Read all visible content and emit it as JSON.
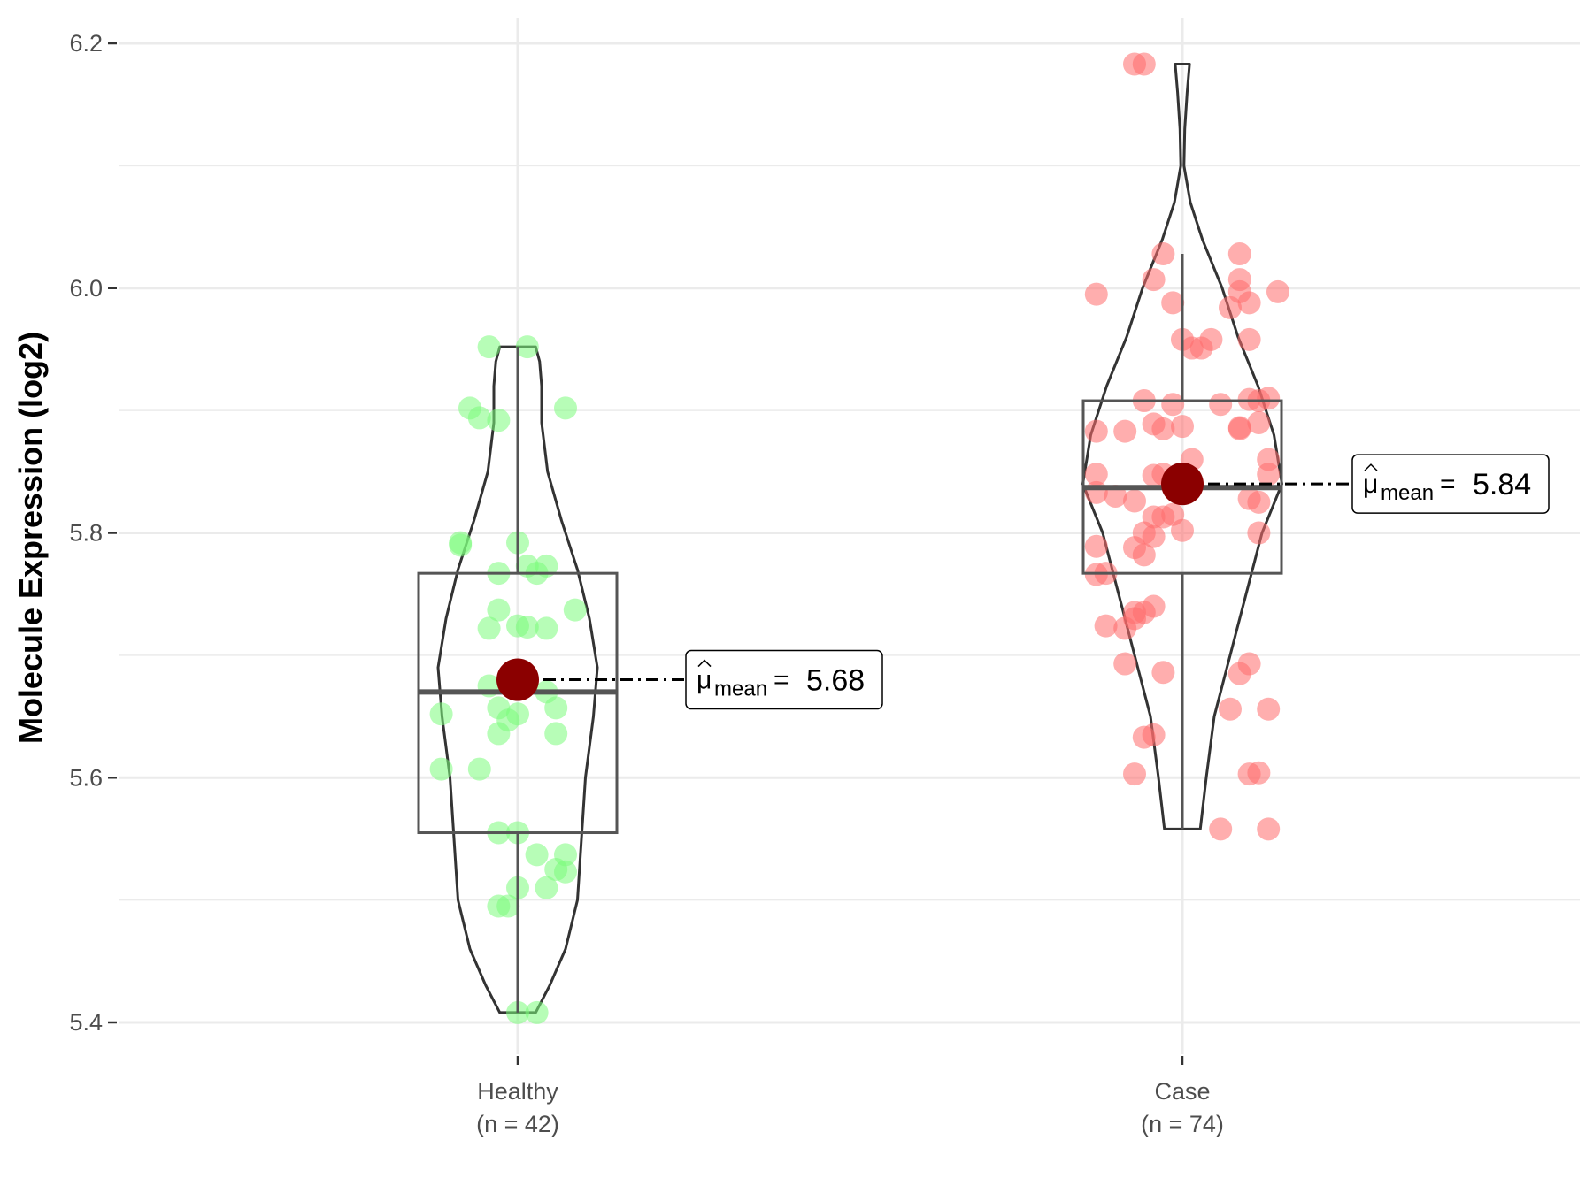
{
  "chart_data": {
    "type": "violin",
    "title": "",
    "xlabel": "",
    "ylabel": "Molecule Expression (log2)",
    "ylim": [
      5.38,
      6.22
    ],
    "y_ticks": [
      "5.4",
      "5.6",
      "5.8",
      "6.0",
      "6.2"
    ],
    "grid": true,
    "categories": [
      {
        "name": "Healthy",
        "n_label": "(n = 42)",
        "color": "#7CFC7C",
        "box": {
          "q1": 5.555,
          "median": 5.67,
          "q3": 5.767,
          "whisker_low": 5.408,
          "whisker_high": 5.952
        },
        "mean": 5.68,
        "mean_label": "5.68",
        "points": [
          [
            -0.03,
            5.952
          ],
          [
            0.01,
            5.952
          ],
          [
            -0.05,
            5.902
          ],
          [
            -0.04,
            5.894
          ],
          [
            -0.02,
            5.892
          ],
          [
            0.05,
            5.902
          ],
          [
            -0.06,
            5.792
          ],
          [
            0.0,
            5.792
          ],
          [
            -0.02,
            5.767
          ],
          [
            0.01,
            5.773
          ],
          [
            0.02,
            5.767
          ],
          [
            0.03,
            5.773
          ],
          [
            -0.02,
            5.737
          ],
          [
            -0.03,
            5.722
          ],
          [
            0.01,
            5.723
          ],
          [
            0.0,
            5.724
          ],
          [
            0.03,
            5.722
          ],
          [
            0.06,
            5.737
          ],
          [
            -0.03,
            5.675
          ],
          [
            -0.02,
            5.657
          ],
          [
            -0.01,
            5.647
          ],
          [
            0.0,
            5.652
          ],
          [
            -0.08,
            5.652
          ],
          [
            0.03,
            5.67
          ],
          [
            0.04,
            5.657
          ],
          [
            -0.02,
            5.636
          ],
          [
            0.04,
            5.636
          ],
          [
            -0.08,
            5.607
          ],
          [
            -0.04,
            5.607
          ],
          [
            -0.02,
            5.555
          ],
          [
            0.0,
            5.555
          ],
          [
            0.02,
            5.537
          ],
          [
            0.05,
            5.537
          ],
          [
            0.04,
            5.525
          ],
          [
            0.05,
            5.523
          ],
          [
            0.03,
            5.51
          ],
          [
            0.0,
            5.51
          ],
          [
            -0.02,
            5.495
          ],
          [
            -0.01,
            5.495
          ],
          [
            0.0,
            5.408
          ],
          [
            0.02,
            5.408
          ],
          [
            -0.06,
            5.79
          ]
        ],
        "violin": [
          [
            5.408,
            0.045
          ],
          [
            5.43,
            0.08
          ],
          [
            5.46,
            0.12
          ],
          [
            5.5,
            0.15
          ],
          [
            5.55,
            0.16
          ],
          [
            5.6,
            0.17
          ],
          [
            5.65,
            0.19
          ],
          [
            5.69,
            0.2
          ],
          [
            5.73,
            0.18
          ],
          [
            5.77,
            0.15
          ],
          [
            5.81,
            0.11
          ],
          [
            5.85,
            0.075
          ],
          [
            5.89,
            0.06
          ],
          [
            5.92,
            0.06
          ],
          [
            5.94,
            0.055
          ],
          [
            5.952,
            0.045
          ]
        ]
      },
      {
        "name": "Case",
        "n_label": "(n = 74)",
        "color": "#FF6B6B",
        "box": {
          "q1": 5.767,
          "median": 5.837,
          "q3": 5.908,
          "whisker_low": 5.558,
          "whisker_high": 6.028
        },
        "mean": 5.84,
        "mean_label": "5.84",
        "points": [
          [
            -0.04,
            6.183
          ],
          [
            -0.05,
            6.183
          ],
          [
            -0.02,
            6.028
          ],
          [
            0.06,
            6.028
          ],
          [
            -0.03,
            6.007
          ],
          [
            0.06,
            6.007
          ],
          [
            -0.09,
            5.995
          ],
          [
            -0.01,
            5.988
          ],
          [
            0.06,
            5.997
          ],
          [
            0.1,
            5.997
          ],
          [
            0.05,
            5.984
          ],
          [
            0.07,
            5.988
          ],
          [
            0.0,
            5.958
          ],
          [
            0.03,
            5.958
          ],
          [
            0.07,
            5.958
          ],
          [
            0.01,
            5.951
          ],
          [
            0.02,
            5.951
          ],
          [
            -0.04,
            5.908
          ],
          [
            -0.01,
            5.905
          ],
          [
            0.04,
            5.905
          ],
          [
            0.07,
            5.909
          ],
          [
            0.09,
            5.91
          ],
          [
            0.08,
            5.908
          ],
          [
            -0.09,
            5.883
          ],
          [
            -0.06,
            5.883
          ],
          [
            -0.03,
            5.889
          ],
          [
            -0.02,
            5.885
          ],
          [
            0.0,
            5.887
          ],
          [
            0.06,
            5.886
          ],
          [
            0.08,
            5.89
          ],
          [
            0.01,
            5.86
          ],
          [
            0.09,
            5.86
          ],
          [
            -0.09,
            5.848
          ],
          [
            -0.03,
            5.847
          ],
          [
            -0.02,
            5.848
          ],
          [
            0.09,
            5.848
          ],
          [
            -0.09,
            5.833
          ],
          [
            -0.07,
            5.83
          ],
          [
            -0.05,
            5.826
          ],
          [
            0.0,
            5.834
          ],
          [
            0.07,
            5.828
          ],
          [
            0.08,
            5.825
          ],
          [
            -0.03,
            5.813
          ],
          [
            -0.02,
            5.813
          ],
          [
            -0.01,
            5.815
          ],
          [
            -0.04,
            5.8
          ],
          [
            -0.03,
            5.797
          ],
          [
            0.0,
            5.802
          ],
          [
            0.08,
            5.8
          ],
          [
            -0.09,
            5.789
          ],
          [
            -0.05,
            5.788
          ],
          [
            -0.04,
            5.782
          ],
          [
            -0.09,
            5.766
          ],
          [
            -0.08,
            5.767
          ],
          [
            -0.03,
            5.74
          ],
          [
            -0.04,
            5.735
          ],
          [
            -0.05,
            5.73
          ],
          [
            -0.06,
            5.722
          ],
          [
            -0.08,
            5.724
          ],
          [
            -0.06,
            5.693
          ],
          [
            -0.02,
            5.686
          ],
          [
            0.07,
            5.693
          ],
          [
            0.06,
            5.685
          ],
          [
            0.05,
            5.656
          ],
          [
            0.09,
            5.656
          ],
          [
            -0.04,
            5.633
          ],
          [
            -0.03,
            5.635
          ],
          [
            -0.05,
            5.603
          ],
          [
            0.07,
            5.603
          ],
          [
            0.08,
            5.604
          ],
          [
            0.04,
            5.558
          ],
          [
            0.09,
            5.558
          ],
          [
            0.06,
            5.885
          ],
          [
            -0.05,
            5.735
          ]
        ],
        "violin": [
          [
            5.558,
            0.045
          ],
          [
            5.6,
            0.06
          ],
          [
            5.65,
            0.08
          ],
          [
            5.7,
            0.12
          ],
          [
            5.75,
            0.16
          ],
          [
            5.8,
            0.2
          ],
          [
            5.84,
            0.25
          ],
          [
            5.88,
            0.23
          ],
          [
            5.92,
            0.19
          ],
          [
            5.96,
            0.14
          ],
          [
            6.0,
            0.1
          ],
          [
            6.04,
            0.05
          ],
          [
            6.07,
            0.02
          ],
          [
            6.1,
            0.004
          ],
          [
            6.13,
            0.006
          ],
          [
            6.16,
            0.012
          ],
          [
            6.183,
            0.018
          ]
        ]
      }
    ]
  }
}
